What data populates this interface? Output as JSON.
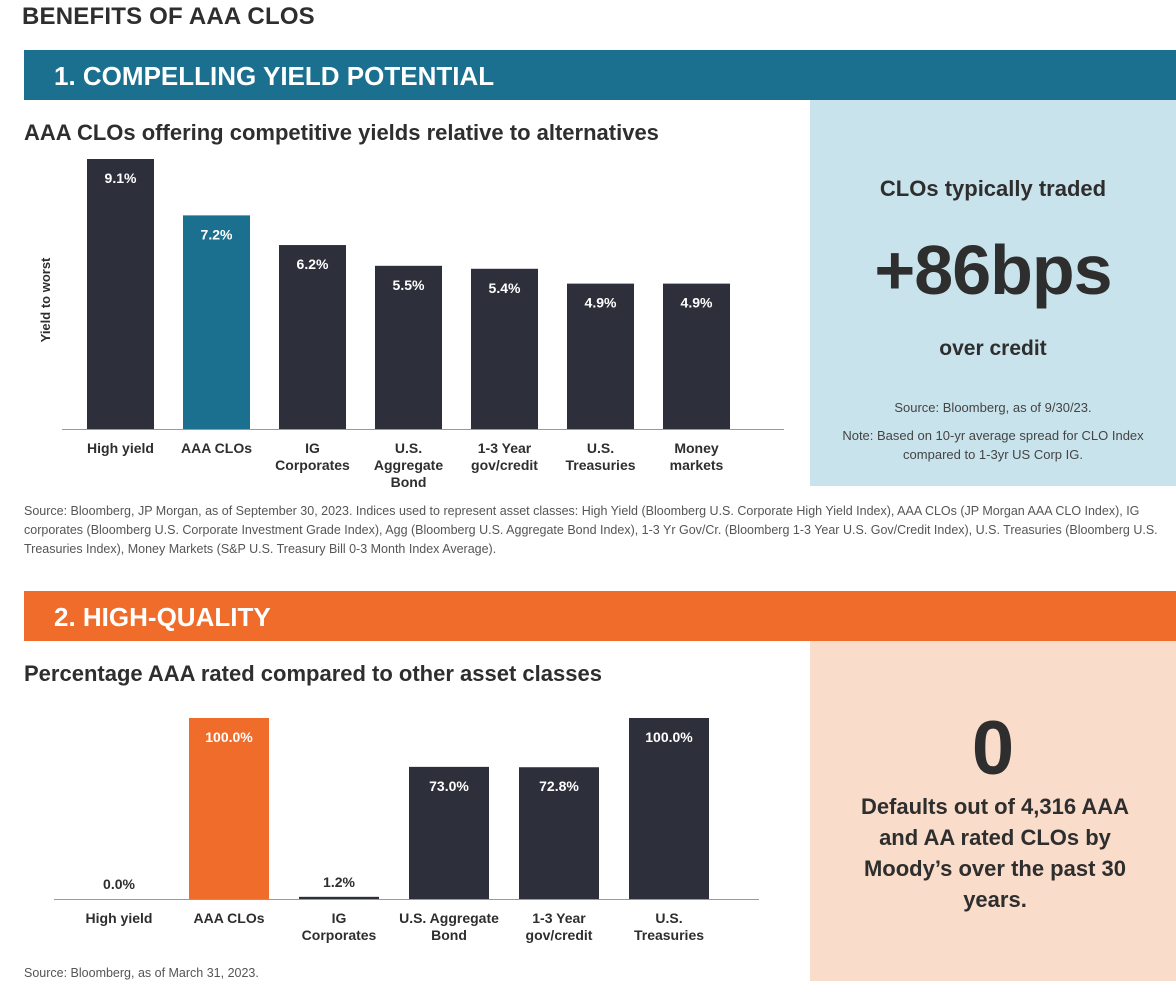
{
  "page_title": "BENEFITS OF AAA CLOS",
  "section1": {
    "banner": "1. COMPELLING YIELD POTENTIAL",
    "subtitle": "AAA CLOs offering competitive yields relative to alternatives",
    "source": "Source: Bloomberg, JP Morgan, as of September 30, 2023. Indices used to represent asset classes: High Yield (Bloomberg U.S. Corporate High Yield Index), AAA CLOs (JP Morgan AAA CLO Index), IG corporates (Bloomberg U.S. Corporate Investment Grade Index), Agg (Bloomberg U.S. Aggregate Bond Index), 1-3 Yr Gov/Cr. (Bloomberg 1-3 Year U.S. Gov/Credit Index), U.S. Treasuries (Bloomberg U.S. Treasuries Index), Money Markets (S&P U.S. Treasury Bill 0-3 Month Index Average).",
    "callout": {
      "lead": "CLOs typically traded",
      "big": "+86bps",
      "sub": "over credit",
      "source": "Source: Bloomberg, as of 9/30/23.",
      "note": "Note: Based on 10-yr average spread for CLO Index compared to 1-3yr US Corp IG."
    }
  },
  "section2": {
    "banner": "2. HIGH-QUALITY",
    "subtitle": "Percentage AAA rated compared to other asset classes",
    "source": "Source: Bloomberg, as of March 31, 2023.",
    "callout": {
      "big": "0",
      "text": "Defaults out of 4,316 AAA and AA rated CLOs by Moody’s over the past 30 years."
    }
  },
  "chart_data": [
    {
      "type": "bar",
      "title": "AAA CLOs offering competitive yields relative to alternatives",
      "ylabel": "Yield to worst",
      "xlabel": "",
      "ylim": [
        0,
        9.1
      ],
      "categories": [
        [
          "High yield"
        ],
        [
          "AAA CLOs"
        ],
        [
          "IG",
          "Corporates"
        ],
        [
          "U.S.",
          "Aggregate",
          "Bond"
        ],
        [
          "1-3 Year",
          "gov/credit"
        ],
        [
          "U.S.",
          "Treasuries"
        ],
        [
          "Money",
          "markets"
        ]
      ],
      "values": [
        9.1,
        7.2,
        6.2,
        5.5,
        5.4,
        4.9,
        4.9
      ],
      "value_labels": [
        "9.1%",
        "7.2%",
        "6.2%",
        "5.5%",
        "5.4%",
        "4.9%",
        "4.9%"
      ],
      "colors": [
        "#2d2f3b",
        "#1b6f8f",
        "#2d2f3b",
        "#2d2f3b",
        "#2d2f3b",
        "#2d2f3b",
        "#2d2f3b"
      ]
    },
    {
      "type": "bar",
      "title": "Percentage AAA rated compared to other asset classes",
      "ylabel": "",
      "xlabel": "",
      "ylim": [
        0,
        100
      ],
      "categories": [
        [
          "High yield"
        ],
        [
          "AAA CLOs"
        ],
        [
          "IG",
          "Corporates"
        ],
        [
          "U.S. Aggregate",
          "Bond"
        ],
        [
          "1-3 Year",
          "gov/credit"
        ],
        [
          "U.S.",
          "Treasuries"
        ]
      ],
      "values": [
        0.0,
        100.0,
        1.2,
        73.0,
        72.8,
        100.0
      ],
      "value_labels": [
        "0.0%",
        "100.0%",
        "1.2%",
        "73.0%",
        "72.8%",
        "100.0%"
      ],
      "colors": [
        "#2d2f3b",
        "#ef6c2b",
        "#2d2f3b",
        "#2d2f3b",
        "#2d2f3b",
        "#2d2f3b"
      ]
    }
  ]
}
